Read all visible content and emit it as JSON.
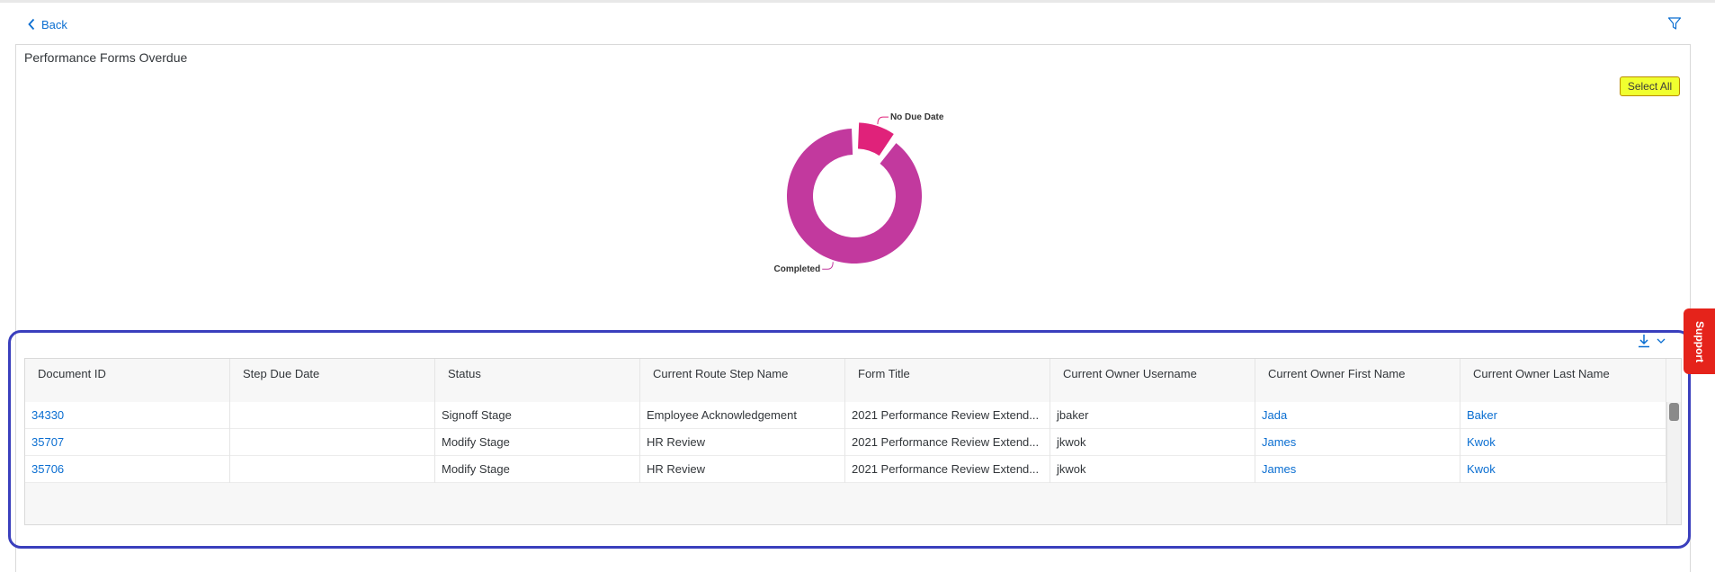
{
  "nav": {
    "back_label": "Back"
  },
  "card": {
    "title": "Performance Forms Overdue",
    "select_all_label": "Select All"
  },
  "chart_data": {
    "type": "pie",
    "variant": "donut",
    "slices": [
      {
        "label": "No Due Date",
        "value": 1,
        "color": "#e0227a"
      },
      {
        "label": "Completed",
        "value": 9,
        "color": "#c2399e"
      }
    ]
  },
  "table": {
    "columns": [
      "Document ID",
      "Step Due Date",
      "Status",
      "Current Route Step Name",
      "Form Title",
      "Current Owner Username",
      "Current Owner First Name",
      "Current Owner Last Name"
    ],
    "rows": [
      [
        "34330",
        "",
        "Signoff Stage",
        "Employee Acknowledgement",
        "2021 Performance Review Extend...",
        "jbaker",
        "Jada",
        "Baker"
      ],
      [
        "35707",
        "",
        "Modify Stage",
        "HR Review",
        "2021 Performance Review Extend...",
        "jkwok",
        "James",
        "Kwok"
      ],
      [
        "35706",
        "",
        "Modify Stage",
        "HR Review",
        "2021 Performance Review Extend...",
        "jkwok",
        "James",
        "Kwok"
      ]
    ],
    "link_columns": [
      0,
      6,
      7
    ]
  },
  "support": {
    "label": "Support"
  },
  "colors": {
    "accent": "#0a6ed1",
    "highlight_border": "#3a3fbd",
    "support_bg": "#e5231b",
    "select_all_bg": "#f0ff2f"
  },
  "icons": {
    "back": "chevron-left-icon",
    "filter": "filter-icon",
    "download": "download-icon",
    "dropdown": "chevron-down-icon"
  }
}
